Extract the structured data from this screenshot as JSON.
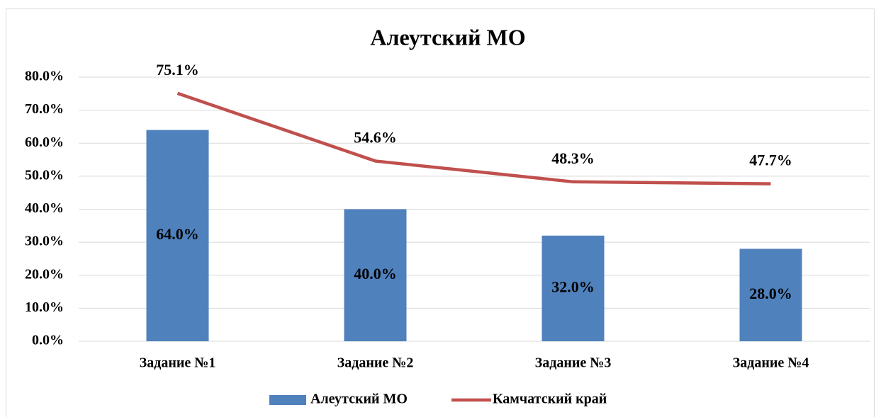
{
  "chart_data": {
    "type": "bar",
    "title": "Алеутский МО",
    "categories": [
      "Задание №1",
      "Задание №2",
      "Задание №3",
      "Задание №4"
    ],
    "series": [
      {
        "name": "Алеутский МО",
        "type": "bar",
        "color": "#4f81bd",
        "values": [
          64,
          40,
          32,
          28
        ],
        "value_labels": [
          "64.0%",
          "40.0%",
          "32.0%",
          "28.0%"
        ]
      },
      {
        "name": "Камчатский край",
        "type": "line",
        "color": "#c0504d",
        "values": [
          75.1,
          54.6,
          48.3,
          47.7
        ],
        "value_labels": [
          "75.1%",
          "54.6%",
          "48.3%",
          "47.7%"
        ]
      }
    ],
    "ylim": [
      0,
      80
    ],
    "yticks": [
      {
        "value": 0,
        "label": "0.0%"
      },
      {
        "value": 10,
        "label": "10.0%"
      },
      {
        "value": 20,
        "label": "20.0%"
      },
      {
        "value": 30,
        "label": "30.0%"
      },
      {
        "value": 40,
        "label": "40.0%"
      },
      {
        "value": 50,
        "label": "50.0%"
      },
      {
        "value": 60,
        "label": "60.0%"
      },
      {
        "value": 70,
        "label": "70.0%"
      },
      {
        "value": 80,
        "label": "80.0%"
      }
    ],
    "grid": true,
    "legend": "bottom"
  }
}
